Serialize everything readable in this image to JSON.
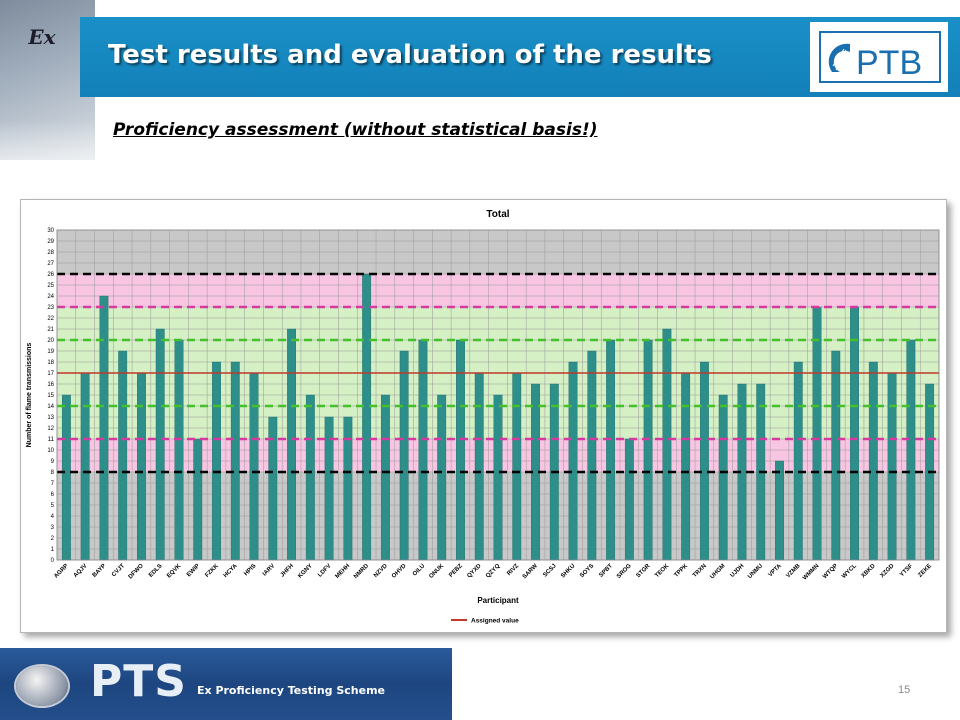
{
  "slide": {
    "title": "Test results and evaluation of the results",
    "subtitle": "Proficiency assessment (without statistical basis!)",
    "logo_text": "PTB",
    "footer_brand": "PTS",
    "footer_badge": "Ex",
    "footer_scheme": "Ex Proficiency Testing Scheme",
    "page_number": "15"
  },
  "colors": {
    "title_bar": "#1a8cc6",
    "bar": "#2e8e8a",
    "assigned_line": "#c0392b",
    "black_limit": "#000000",
    "magenta_limit": "#d63aa0",
    "green_limit": "#44c02a",
    "pink_zone": "#f8c6e2",
    "green_zone": "#d4f0c4",
    "gray_zone": "#c8c8c8"
  },
  "chart_data": {
    "type": "bar",
    "title": "Total",
    "xlabel": "Participant",
    "ylabel": "Number of flame transmissions",
    "ylim": [
      0,
      30
    ],
    "yticks": [
      0,
      1,
      2,
      3,
      4,
      5,
      6,
      7,
      8,
      9,
      10,
      11,
      12,
      13,
      14,
      15,
      16,
      17,
      18,
      19,
      20,
      21,
      22,
      23,
      24,
      25,
      26,
      27,
      28,
      29,
      30
    ],
    "grid": true,
    "legend": {
      "position": "bottom",
      "label": "Assigned value"
    },
    "categories": [
      "AGRP",
      "AQJV",
      "BAYP",
      "CVJT",
      "DFWO",
      "EDLS",
      "EQVK",
      "EWIP",
      "FZKK",
      "HCYA",
      "HPIS",
      "IARV",
      "JHFH",
      "KGNY",
      "LDFV",
      "MEHH",
      "NMRD",
      "NZVD",
      "OHVD",
      "OILU",
      "ONUK",
      "PEBZ",
      "QYXD",
      "QZYQ",
      "RIVZ",
      "SARW",
      "SCSJ",
      "SHKU",
      "SOYS",
      "SPBT",
      "SROG",
      "STGR",
      "TEOK",
      "TPPK",
      "TRXN",
      "UHGM",
      "UJDH",
      "UNMU",
      "VPTA",
      "VZMB",
      "WMMN",
      "WTQP",
      "WYCL",
      "XBKD",
      "XZGD",
      "YTSF",
      "ZEKE"
    ],
    "values": [
      15,
      17,
      24,
      19,
      17,
      21,
      20,
      11,
      18,
      18,
      17,
      13,
      21,
      15,
      13,
      13,
      26,
      15,
      19,
      20,
      15,
      20,
      17,
      15,
      17,
      16,
      16,
      18,
      19,
      20,
      11,
      20,
      21,
      17,
      18,
      15,
      16,
      16,
      9,
      18,
      23,
      19,
      23,
      18,
      17,
      20,
      16
    ],
    "assigned_value": 17,
    "limit_lines": [
      {
        "value": 26,
        "color": "#000000"
      },
      {
        "value": 8,
        "color": "#000000"
      },
      {
        "value": 23,
        "color": "#d63aa0"
      },
      {
        "value": 11,
        "color": "#d63aa0"
      },
      {
        "value": 20,
        "color": "#44c02a"
      },
      {
        "value": 14,
        "color": "#44c02a"
      }
    ],
    "zones": [
      {
        "from": 8,
        "to": 26,
        "color": "#f8c6e2"
      },
      {
        "from": 11,
        "to": 23,
        "color": "#d4f0c4"
      }
    ]
  }
}
